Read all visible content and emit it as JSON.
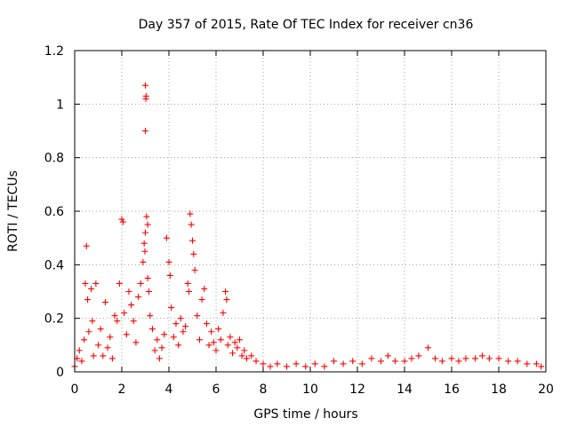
{
  "chart_data": {
    "type": "scatter",
    "title": "Day 357 of 2015, Rate Of TEC Index for receiver cn36",
    "xlabel": "GPS time / hours",
    "ylabel": "ROTI / TECUs",
    "xlim": [
      0,
      20
    ],
    "ylim": [
      0,
      1.2
    ],
    "xticks": [
      "0",
      "2",
      "4",
      "6",
      "8",
      "10",
      "12",
      "14",
      "16",
      "18",
      "20"
    ],
    "yticks": [
      "0",
      "0.2",
      "0.4",
      "0.6",
      "0.8",
      "1",
      "1.2"
    ],
    "grid": true,
    "marker": "+",
    "color": "#ff0000",
    "series": [
      {
        "name": "ROTI",
        "points": [
          [
            0.0,
            0.02
          ],
          [
            0.1,
            0.05
          ],
          [
            0.2,
            0.08
          ],
          [
            0.3,
            0.04
          ],
          [
            0.4,
            0.12
          ],
          [
            0.45,
            0.33
          ],
          [
            0.5,
            0.47
          ],
          [
            0.55,
            0.27
          ],
          [
            0.6,
            0.15
          ],
          [
            0.7,
            0.31
          ],
          [
            0.75,
            0.19
          ],
          [
            0.8,
            0.06
          ],
          [
            0.9,
            0.33
          ],
          [
            1.0,
            0.1
          ],
          [
            1.1,
            0.16
          ],
          [
            1.2,
            0.06
          ],
          [
            1.3,
            0.26
          ],
          [
            1.4,
            0.09
          ],
          [
            1.5,
            0.13
          ],
          [
            1.6,
            0.05
          ],
          [
            1.7,
            0.21
          ],
          [
            1.8,
            0.19
          ],
          [
            1.9,
            0.33
          ],
          [
            2.0,
            0.57
          ],
          [
            2.05,
            0.56
          ],
          [
            2.1,
            0.22
          ],
          [
            2.2,
            0.14
          ],
          [
            2.3,
            0.3
          ],
          [
            2.4,
            0.25
          ],
          [
            2.5,
            0.19
          ],
          [
            2.6,
            0.11
          ],
          [
            2.7,
            0.28
          ],
          [
            2.8,
            0.33
          ],
          [
            2.9,
            0.41
          ],
          [
            2.95,
            0.48
          ],
          [
            3.0,
            1.07
          ],
          [
            3.02,
            1.02
          ],
          [
            3.03,
            1.03
          ],
          [
            3.0,
            0.9
          ],
          [
            3.05,
            0.58
          ],
          [
            3.1,
            0.55
          ],
          [
            3.0,
            0.52
          ],
          [
            2.98,
            0.45
          ],
          [
            3.1,
            0.35
          ],
          [
            3.15,
            0.3
          ],
          [
            3.2,
            0.21
          ],
          [
            3.3,
            0.16
          ],
          [
            3.4,
            0.08
          ],
          [
            3.5,
            0.12
          ],
          [
            3.6,
            0.05
          ],
          [
            3.7,
            0.09
          ],
          [
            3.8,
            0.14
          ],
          [
            3.9,
            0.5
          ],
          [
            4.0,
            0.41
          ],
          [
            4.05,
            0.36
          ],
          [
            4.1,
            0.24
          ],
          [
            4.2,
            0.13
          ],
          [
            4.3,
            0.18
          ],
          [
            4.4,
            0.1
          ],
          [
            4.5,
            0.2
          ],
          [
            4.6,
            0.15
          ],
          [
            4.7,
            0.17
          ],
          [
            4.8,
            0.33
          ],
          [
            4.85,
            0.3
          ],
          [
            4.9,
            0.59
          ],
          [
            4.95,
            0.55
          ],
          [
            5.0,
            0.49
          ],
          [
            5.05,
            0.44
          ],
          [
            5.1,
            0.38
          ],
          [
            5.2,
            0.21
          ],
          [
            5.3,
            0.12
          ],
          [
            5.4,
            0.27
          ],
          [
            5.5,
            0.31
          ],
          [
            5.6,
            0.18
          ],
          [
            5.7,
            0.1
          ],
          [
            5.8,
            0.15
          ],
          [
            5.9,
            0.11
          ],
          [
            6.0,
            0.08
          ],
          [
            6.1,
            0.16
          ],
          [
            6.2,
            0.12
          ],
          [
            6.3,
            0.22
          ],
          [
            6.4,
            0.3
          ],
          [
            6.45,
            0.27
          ],
          [
            6.5,
            0.1
          ],
          [
            6.6,
            0.13
          ],
          [
            6.7,
            0.07
          ],
          [
            6.8,
            0.11
          ],
          [
            6.9,
            0.09
          ],
          [
            7.0,
            0.12
          ],
          [
            7.1,
            0.06
          ],
          [
            7.2,
            0.08
          ],
          [
            7.3,
            0.05
          ],
          [
            7.5,
            0.06
          ],
          [
            7.7,
            0.04
          ],
          [
            8.0,
            0.03
          ],
          [
            8.3,
            0.02
          ],
          [
            8.6,
            0.03
          ],
          [
            9.0,
            0.02
          ],
          [
            9.4,
            0.03
          ],
          [
            9.8,
            0.02
          ],
          [
            10.2,
            0.03
          ],
          [
            10.6,
            0.02
          ],
          [
            11.0,
            0.04
          ],
          [
            11.4,
            0.03
          ],
          [
            11.8,
            0.04
          ],
          [
            12.2,
            0.03
          ],
          [
            12.6,
            0.05
          ],
          [
            13.0,
            0.04
          ],
          [
            13.3,
            0.06
          ],
          [
            13.6,
            0.04
          ],
          [
            14.0,
            0.04
          ],
          [
            14.3,
            0.05
          ],
          [
            14.6,
            0.06
          ],
          [
            15.0,
            0.09
          ],
          [
            15.3,
            0.05
          ],
          [
            15.6,
            0.04
          ],
          [
            16.0,
            0.05
          ],
          [
            16.3,
            0.04
          ],
          [
            16.6,
            0.05
          ],
          [
            17.0,
            0.05
          ],
          [
            17.3,
            0.06
          ],
          [
            17.6,
            0.05
          ],
          [
            18.0,
            0.05
          ],
          [
            18.4,
            0.04
          ],
          [
            18.8,
            0.04
          ],
          [
            19.2,
            0.03
          ],
          [
            19.6,
            0.03
          ],
          [
            19.8,
            0.02
          ]
        ]
      }
    ]
  }
}
